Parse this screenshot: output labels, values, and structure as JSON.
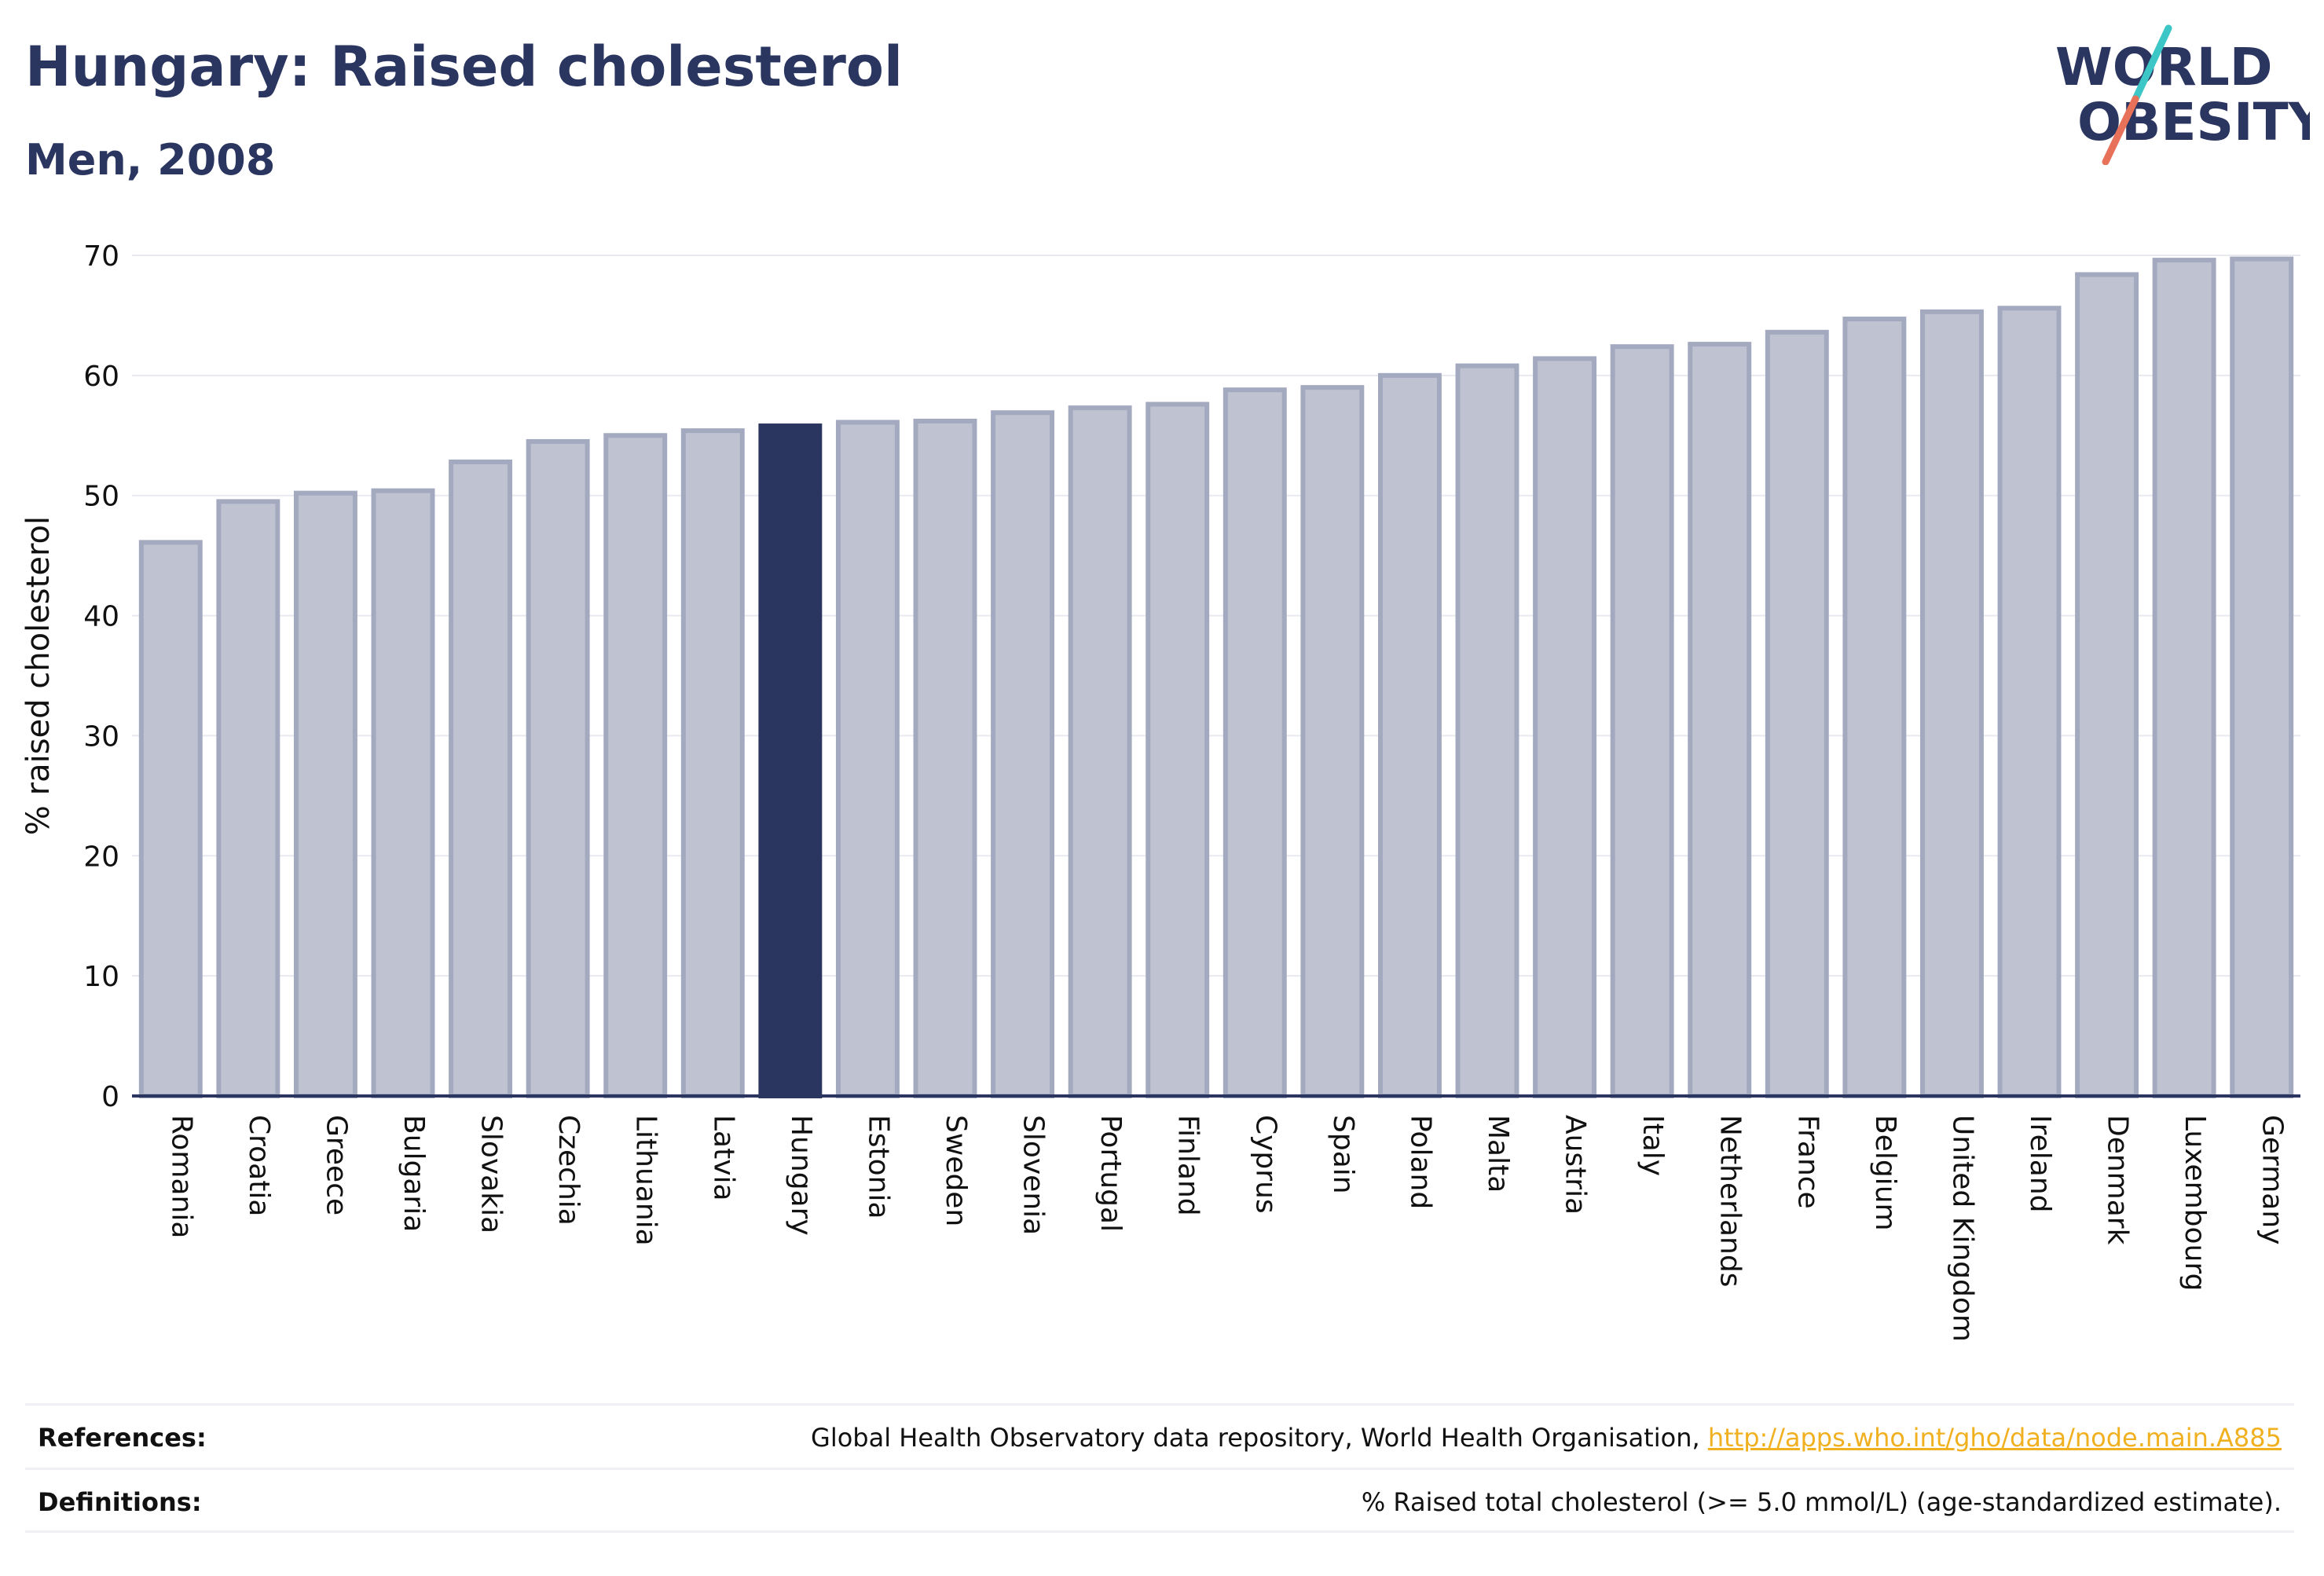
{
  "header": {
    "title": "Hungary: Raised cholesterol",
    "subtitle": "Men, 2008"
  },
  "logo": {
    "line1": "WORLD",
    "line2": "OBESITY",
    "slash_colors": [
      "#3cc6c6",
      "#e8715a"
    ]
  },
  "colors": {
    "bar": "#bfc3d1",
    "bar_border": "#a3a9bf",
    "highlight": "#2a3560",
    "grid": "#e8eaf0",
    "axis": "#2a3560"
  },
  "chart_data": {
    "type": "bar",
    "title": "Hungary: Raised cholesterol",
    "subtitle": "Men, 2008",
    "xlabel": "",
    "ylabel": "% raised cholesterol",
    "ylim": [
      0,
      70
    ],
    "yticks": [
      0,
      10,
      20,
      30,
      40,
      50,
      60,
      70
    ],
    "grid": true,
    "highlight": "Hungary",
    "categories": [
      "Romania",
      "Croatia",
      "Greece",
      "Bulgaria",
      "Slovakia",
      "Czechia",
      "Lithuania",
      "Latvia",
      "Hungary",
      "Estonia",
      "Sweden",
      "Slovenia",
      "Portugal",
      "Finland",
      "Cyprus",
      "Spain",
      "Poland",
      "Malta",
      "Austria",
      "Italy",
      "Netherlands",
      "France",
      "Belgium",
      "United Kingdom",
      "Ireland",
      "Denmark",
      "Luxembourg",
      "Germany"
    ],
    "values": [
      46.1,
      49.5,
      50.2,
      50.4,
      52.8,
      54.5,
      55.0,
      55.4,
      55.8,
      56.1,
      56.2,
      56.9,
      57.3,
      57.6,
      58.8,
      59.0,
      60.0,
      60.8,
      61.4,
      62.4,
      62.6,
      63.6,
      64.7,
      65.3,
      65.6,
      68.4,
      69.6,
      69.7
    ]
  },
  "footer": {
    "references_label": "References:",
    "references_text": "Global Health Observatory data repository, World Health Organisation, ",
    "references_link": "http://apps.who.int/gho/data/node.main.A885",
    "definitions_label": "Definitions:",
    "definitions_text": "% Raised total cholesterol (>= 5.0 mmol/L) (age-standardized estimate)."
  }
}
